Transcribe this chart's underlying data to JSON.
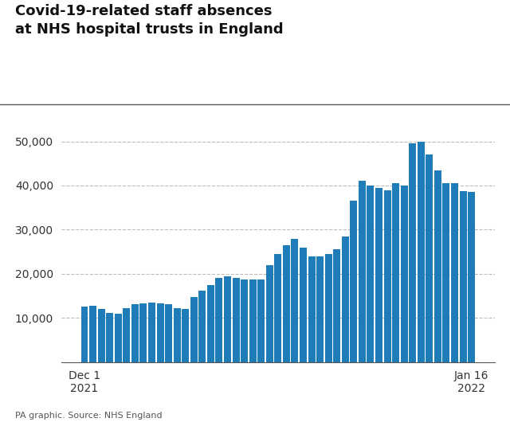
{
  "title_line1": "Covid-19-related staff absences",
  "title_line2": "at NHS hospital trusts in England",
  "source": "PA graphic. Source: NHS England",
  "bar_color": "#1E7CB8",
  "background_color": "#ffffff",
  "xlabel_left": "Dec 1\n2021",
  "xlabel_right": "Jan 16\n2022",
  "ylim": [
    0,
    55000
  ],
  "yticks": [
    10000,
    20000,
    30000,
    40000,
    50000
  ],
  "values": [
    12500,
    12700,
    12100,
    11100,
    11000,
    12200,
    13100,
    13300,
    13400,
    13300,
    13200,
    12200,
    12100,
    14800,
    16100,
    17500,
    19000,
    19500,
    19100,
    18700,
    18700,
    18800,
    22000,
    24500,
    26500,
    28000,
    26000,
    24000,
    24000,
    24500,
    25600,
    28500,
    36500,
    41000,
    40000,
    39500,
    39000,
    40500,
    40000,
    49500,
    50000,
    47000,
    43500,
    40500,
    40500,
    38800,
    38500
  ]
}
